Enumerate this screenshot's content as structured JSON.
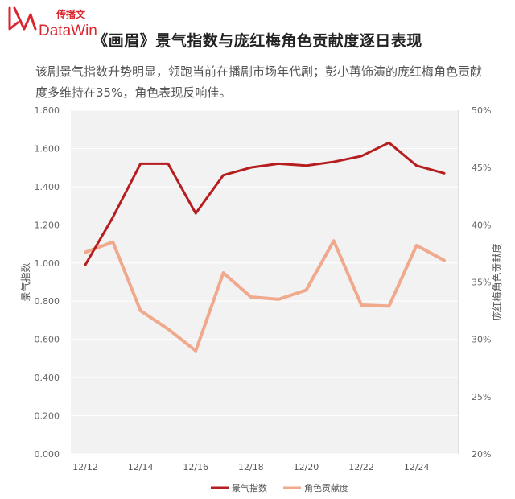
{
  "brand": {
    "cn": "传播文",
    "en": "DataWin",
    "color": "#d9262d"
  },
  "title": "《画眉》景气指数与庞红梅角色贡献度逐日表现",
  "description": "该剧景气指数升势明显，领跑当前在播剧市场年代剧；彭小苒饰演的庞红梅角色贡献度多维持在35%，角色表现反响佳。",
  "chart_data": {
    "type": "line",
    "x": [
      "12/12",
      "12/13",
      "12/14",
      "12/15",
      "12/16",
      "12/17",
      "12/18",
      "12/19",
      "12/20",
      "12/21",
      "12/22",
      "12/23",
      "12/24",
      "12/25"
    ],
    "x_tick_labels": [
      "12/12",
      "12/14",
      "12/16",
      "12/18",
      "12/20",
      "12/22",
      "12/24"
    ],
    "series": [
      {
        "name": "景气指数",
        "axis": "left",
        "color": "#b51d1f",
        "values": [
          0.99,
          1.24,
          1.52,
          1.52,
          1.26,
          1.46,
          1.5,
          1.52,
          1.51,
          1.53,
          1.56,
          1.63,
          1.51,
          1.47
        ]
      },
      {
        "name": "角色贡献度",
        "axis": "right",
        "color": "#f0a98c",
        "values": [
          37.6,
          38.5,
          32.5,
          30.9,
          29.0,
          35.8,
          33.7,
          33.5,
          34.3,
          38.6,
          33.0,
          32.9,
          38.2,
          36.9
        ]
      }
    ],
    "ylabel_left": "景气指数",
    "ylabel_right": "庞红梅角色贡献度",
    "ylim_left": [
      0,
      1.8
    ],
    "yticks_left": [
      "0.000",
      "0.200",
      "0.400",
      "0.600",
      "0.800",
      "1.000",
      "1.200",
      "1.400",
      "1.600",
      "1.800"
    ],
    "ylim_right": [
      20,
      50
    ],
    "yticks_right": [
      "20%",
      "25%",
      "30%",
      "35%",
      "40%",
      "45%",
      "50%"
    ],
    "grid": true,
    "legend_position": "bottom",
    "plot_background": "#f2f2f2"
  }
}
